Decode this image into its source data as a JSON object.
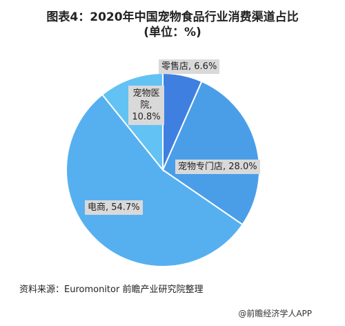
{
  "title": {
    "line1": "图表4：2020年中国宠物食品行业消费渠道占比",
    "line2": "(单位：%)"
  },
  "chart_data": {
    "type": "pie",
    "slices": [
      {
        "label": "零售店, 6.6%",
        "name": "零售店",
        "value": 6.6,
        "color": "#3f7fe0"
      },
      {
        "label": "宠物专门店, 28.0%",
        "name": "宠物专门店",
        "value": 28.0,
        "color": "#4a9ee8"
      },
      {
        "label": "电商, 54.7%",
        "name": "电商",
        "value": 54.7,
        "color": "#56b0f0"
      },
      {
        "label": "宠物医院, 10.8%",
        "name": "宠物医院",
        "value": 10.8,
        "color": "#62c2f4"
      }
    ],
    "label_tall": {
      "line1": "宠物医",
      "line2": "院,",
      "line3": "10.8%"
    }
  },
  "footer": {
    "source": "资料来源：Euromonitor 前瞻产业研究院整理",
    "brand": "@前瞻经济学人APP"
  }
}
